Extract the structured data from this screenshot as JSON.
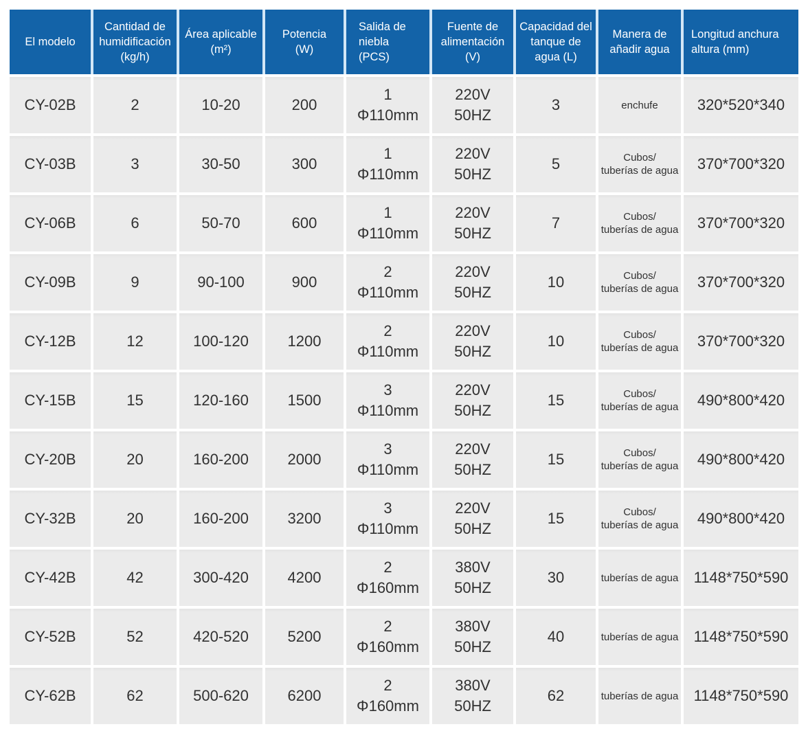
{
  "table": {
    "columns": [
      {
        "key": "model",
        "label": "El modelo"
      },
      {
        "key": "humidification",
        "label": "Cantidad de\nhumidificación\n(kg/h)"
      },
      {
        "key": "area",
        "label": "Área aplicable\n(m²)"
      },
      {
        "key": "power",
        "label": "Potencia\n(W)"
      },
      {
        "key": "mist-outlet",
        "label": "Salida de\nniebla\n(PCS)"
      },
      {
        "key": "power-supply",
        "label": "Fuente de\nalimentación\n(V)"
      },
      {
        "key": "tank-capacity",
        "label": "Capacidad del\ntanque de\nagua (L)"
      },
      {
        "key": "water-adding",
        "label": "Manera de\nañadir agua"
      },
      {
        "key": "dimensions",
        "label": "Longitud anchura\naltura (mm)"
      }
    ],
    "rows": [
      {
        "cells": [
          "CY-02B",
          "2",
          "10-20",
          "200",
          "1\nΦ110mm",
          "220V\n50HZ",
          "3",
          "enchufe",
          "320*520*340"
        ]
      },
      {
        "cells": [
          "CY-03B",
          "3",
          "30-50",
          "300",
          "1\nΦ110mm",
          "220V\n50HZ",
          "5",
          "Cubos/\ntuberías de agua",
          "370*700*320"
        ]
      },
      {
        "cells": [
          "CY-06B",
          "6",
          "50-70",
          "600",
          "1\nΦ110mm",
          "220V\n50HZ",
          "7",
          "Cubos/\ntuberías de agua",
          "370*700*320"
        ]
      },
      {
        "cells": [
          "CY-09B",
          "9",
          "90-100",
          "900",
          "2\nΦ110mm",
          "220V\n50HZ",
          "10",
          "Cubos/\ntuberías de agua",
          "370*700*320"
        ]
      },
      {
        "cells": [
          "CY-12B",
          "12",
          "100-120",
          "1200",
          "2\nΦ110mm",
          "220V\n50HZ",
          "10",
          "Cubos/\ntuberías de agua",
          "370*700*320"
        ]
      },
      {
        "cells": [
          "CY-15B",
          "15",
          "120-160",
          "1500",
          "3\nΦ110mm",
          "220V\n50HZ",
          "15",
          "Cubos/\ntuberías de agua",
          "490*800*420"
        ]
      },
      {
        "cells": [
          "CY-20B",
          "20",
          "160-200",
          "2000",
          "3\nΦ110mm",
          "220V\n50HZ",
          "15",
          "Cubos/\ntuberías de agua",
          "490*800*420"
        ]
      },
      {
        "cells": [
          "CY-32B",
          "20",
          "160-200",
          "3200",
          "3\nΦ110mm",
          "220V\n50HZ",
          "15",
          "Cubos/\ntuberías de agua",
          "490*800*420"
        ]
      },
      {
        "cells": [
          "CY-42B",
          "42",
          "300-420",
          "4200",
          "2\nΦ160mm",
          "380V\n50HZ",
          "30",
          "tuberías de agua",
          "1148*750*590"
        ]
      },
      {
        "cells": [
          "CY-52B",
          "52",
          "420-520",
          "5200",
          "2\nΦ160mm",
          "380V\n50HZ",
          "40",
          "tuberías de agua",
          "1148*750*590"
        ]
      },
      {
        "cells": [
          "CY-62B",
          "62",
          "500-620",
          "6200",
          "2\nΦ160mm",
          "380V\n50HZ",
          "62",
          "tuberías de agua",
          "1148*750*590"
        ]
      }
    ]
  },
  "colors": {
    "header_bg": "#1363a8",
    "header_text": "#ffffff",
    "cell_bg": "#ebebeb",
    "cell_text": "#313131",
    "gap": "#ffffff"
  }
}
